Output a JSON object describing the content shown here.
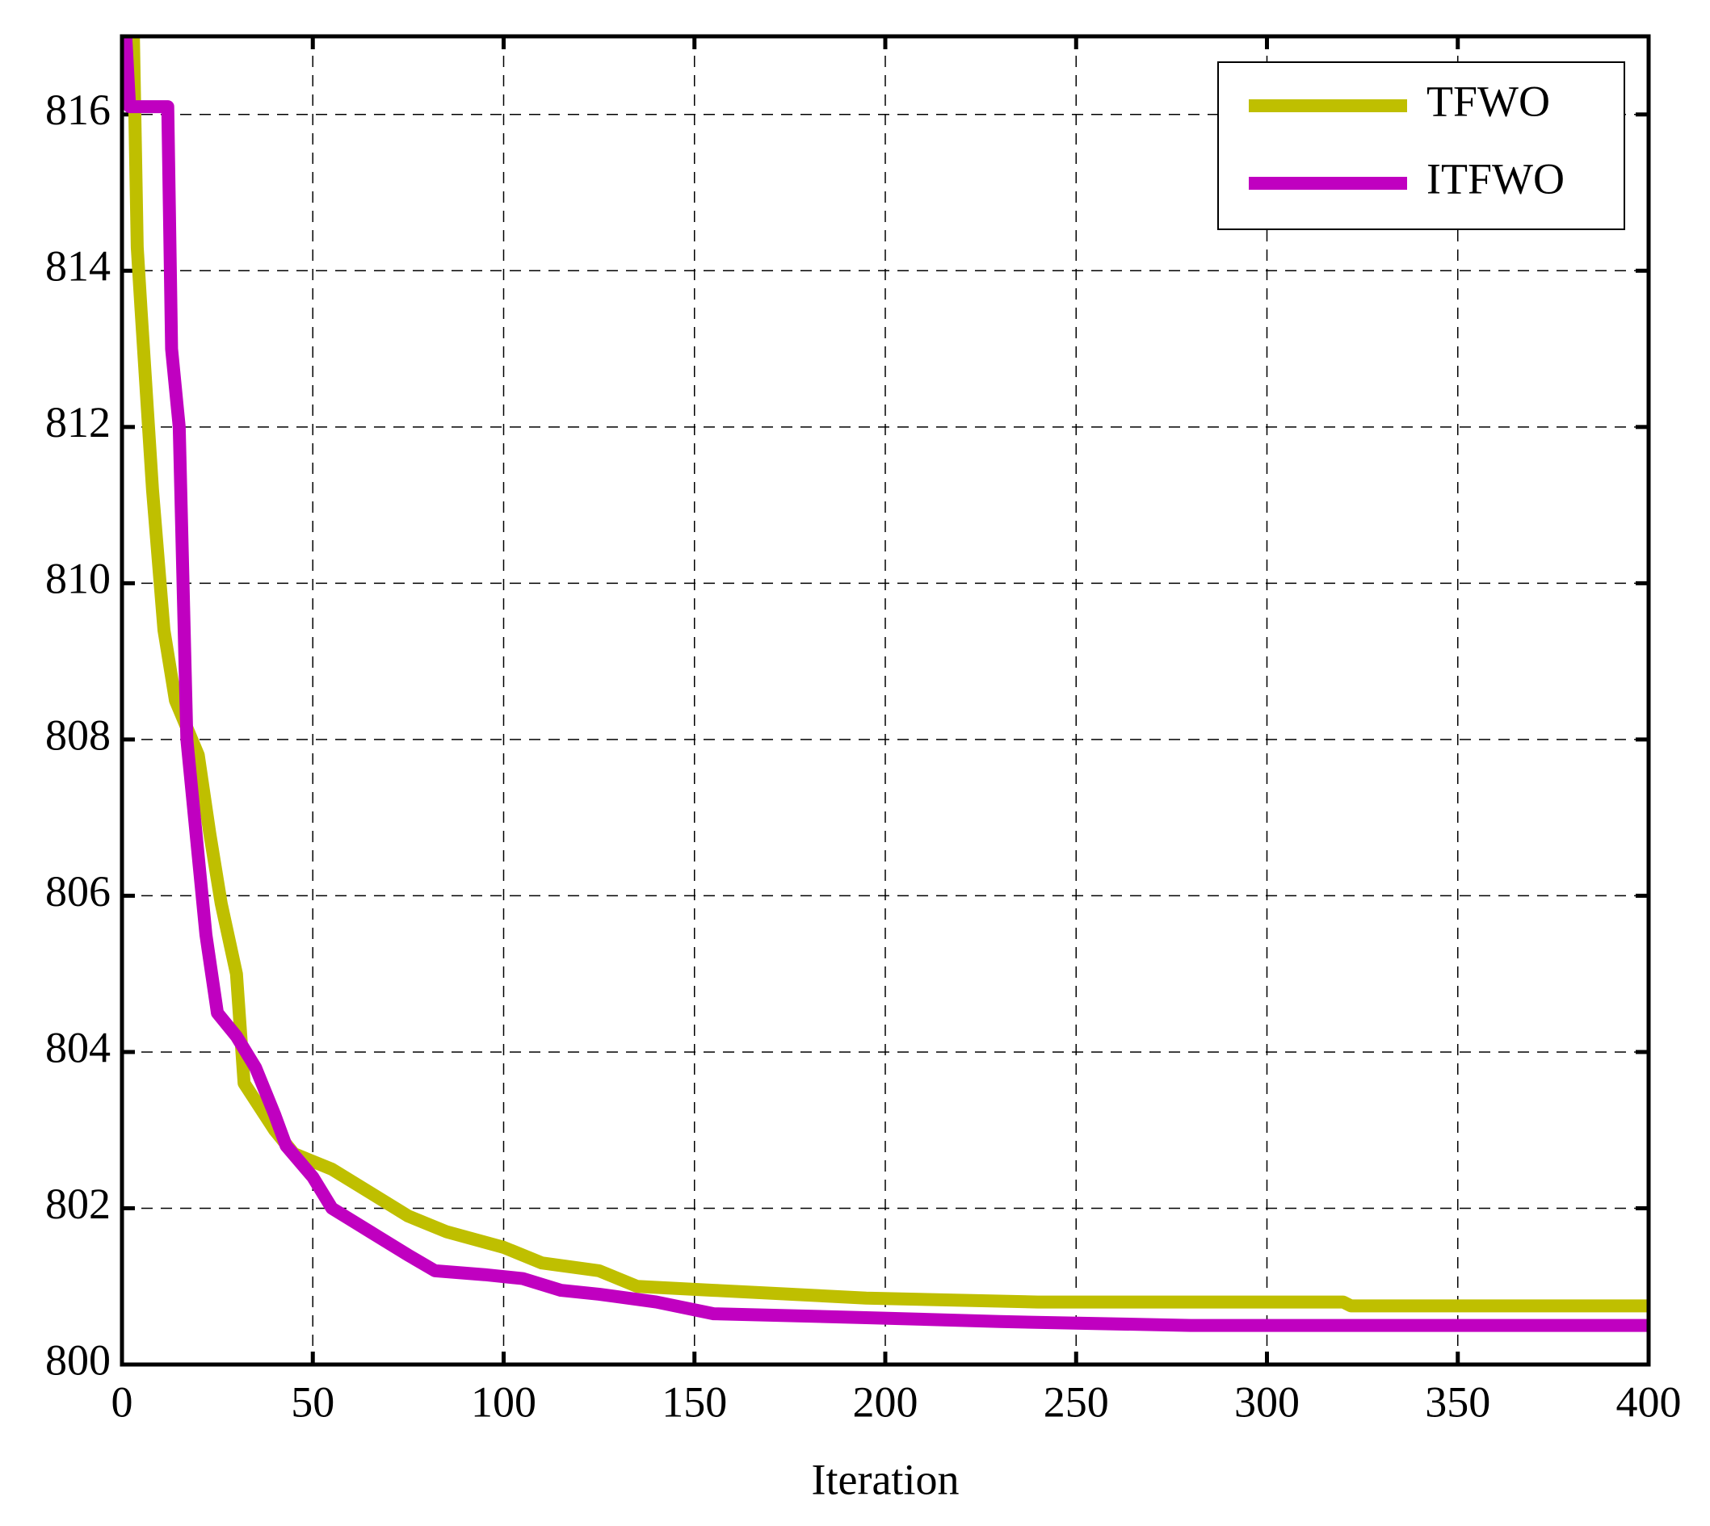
{
  "chart_data": {
    "type": "line",
    "x_label": "Iteration",
    "xlim": [
      0,
      400
    ],
    "xticks": [
      0,
      50,
      100,
      150,
      200,
      250,
      300,
      350,
      400
    ],
    "ylim": [
      800,
      817
    ],
    "yticks": [
      800,
      802,
      804,
      806,
      808,
      810,
      812,
      814,
      816
    ],
    "grid": true,
    "legend": "upper right",
    "series": [
      {
        "name": "TFWO",
        "color": "#bfbf00",
        "x": [
          3,
          4,
          5,
          8,
          11,
          14,
          20,
          23,
          26,
          30,
          32,
          40,
          45,
          55,
          65,
          75,
          85,
          100,
          110,
          125,
          135,
          155,
          175,
          195,
          240,
          320,
          322,
          400
        ],
        "values": [
          817,
          814.3,
          813.5,
          811.2,
          809.4,
          808.5,
          807.8,
          806.8,
          805.9,
          805,
          803.6,
          803,
          802.7,
          802.5,
          802.2,
          801.9,
          801.7,
          801.5,
          801.3,
          801.2,
          801.0,
          800.95,
          800.9,
          800.85,
          800.8,
          800.8,
          800.75,
          800.75
        ]
      },
      {
        "name": "ITFWO",
        "color": "#c000c0",
        "x": [
          1,
          2,
          12,
          13,
          15,
          17,
          20,
          22,
          25,
          30,
          35,
          40,
          43,
          50,
          55,
          65,
          75,
          82,
          95,
          105,
          115,
          125,
          140,
          155,
          195,
          230,
          280,
          400
        ],
        "values": [
          817,
          816.1,
          816.1,
          813,
          812,
          808,
          806.5,
          805.5,
          804.5,
          804.2,
          803.8,
          803.2,
          802.8,
          802.4,
          802,
          801.7,
          801.4,
          801.2,
          801.15,
          801.1,
          800.95,
          800.9,
          800.8,
          800.65,
          800.6,
          800.55,
          800.5,
          800.5
        ]
      }
    ]
  }
}
